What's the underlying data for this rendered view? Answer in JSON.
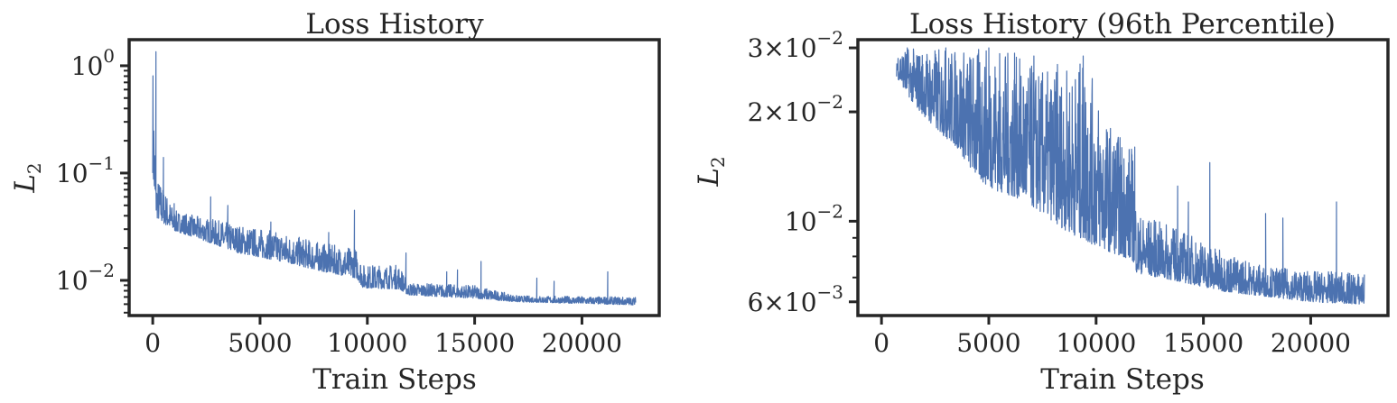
{
  "chart_data": [
    {
      "type": "line",
      "title": "Loss History",
      "xlabel": "Train Steps",
      "ylabel": "L",
      "ylabel_sub": "2",
      "yscale": "log",
      "xlim": [
        -1100,
        23600
      ],
      "ylim": [
        0.0047,
        1.75
      ],
      "x_ticks": [
        0,
        5000,
        10000,
        15000,
        20000
      ],
      "x_tick_labels": [
        "0",
        "5000",
        "10000",
        "15000",
        "20000"
      ],
      "y_ticks": [
        {
          "value": 1,
          "base": "10",
          "exp": "0"
        },
        {
          "value": 0.1,
          "base": "10",
          "exp": "−1"
        },
        {
          "value": 0.01,
          "base": "10",
          "exp": "−2"
        }
      ],
      "grid": false,
      "color": "#4C72B0",
      "envelope": [
        {
          "x": 0,
          "lo": 0.1,
          "hi": 1.35
        },
        {
          "x": 60,
          "lo": 0.06,
          "hi": 0.5
        },
        {
          "x": 120,
          "lo": 0.045,
          "hi": 0.12
        },
        {
          "x": 200,
          "lo": 0.038,
          "hi": 0.09
        },
        {
          "x": 400,
          "lo": 0.035,
          "hi": 0.08
        },
        {
          "x": 1000,
          "lo": 0.029,
          "hi": 0.045
        },
        {
          "x": 2000,
          "lo": 0.025,
          "hi": 0.04
        },
        {
          "x": 4000,
          "lo": 0.018,
          "hi": 0.033
        },
        {
          "x": 6000,
          "lo": 0.015,
          "hi": 0.028
        },
        {
          "x": 8000,
          "lo": 0.012,
          "hi": 0.022
        },
        {
          "x": 9500,
          "lo": 0.0105,
          "hi": 0.02
        },
        {
          "x": 9800,
          "lo": 0.0085,
          "hi": 0.014
        },
        {
          "x": 11500,
          "lo": 0.0083,
          "hi": 0.014
        },
        {
          "x": 11900,
          "lo": 0.0073,
          "hi": 0.0095
        },
        {
          "x": 15000,
          "lo": 0.0068,
          "hi": 0.009
        },
        {
          "x": 17000,
          "lo": 0.0063,
          "hi": 0.0072
        },
        {
          "x": 22500,
          "lo": 0.0059,
          "hi": 0.007
        }
      ],
      "spikes": [
        {
          "x": 150,
          "y": 1.35
        },
        {
          "x": 500,
          "y": 0.14
        },
        {
          "x": 1000,
          "y": 0.052
        },
        {
          "x": 2700,
          "y": 0.06
        },
        {
          "x": 3500,
          "y": 0.05
        },
        {
          "x": 5500,
          "y": 0.035
        },
        {
          "x": 8200,
          "y": 0.028
        },
        {
          "x": 9400,
          "y": 0.045
        },
        {
          "x": 11800,
          "y": 0.018
        },
        {
          "x": 13700,
          "y": 0.012
        },
        {
          "x": 14200,
          "y": 0.0125
        },
        {
          "x": 15300,
          "y": 0.015
        },
        {
          "x": 17900,
          "y": 0.0105
        },
        {
          "x": 18700,
          "y": 0.0098
        },
        {
          "x": 21200,
          "y": 0.012
        }
      ]
    },
    {
      "type": "line",
      "title": "Loss History (96th Percentile)",
      "xlabel": "Train Steps",
      "ylabel": "L",
      "ylabel_sub": "2",
      "yscale": "log",
      "xlim": [
        -1100,
        23600
      ],
      "ylim": [
        0.0055,
        0.0316
      ],
      "x_ticks": [
        0,
        5000,
        10000,
        15000,
        20000
      ],
      "x_tick_labels": [
        "0",
        "5000",
        "10000",
        "15000",
        "20000"
      ],
      "y_ticks": [
        {
          "value": 0.03,
          "mant": "3×",
          "base": "10",
          "exp": "−2"
        },
        {
          "value": 0.02,
          "mant": "2×",
          "base": "10",
          "exp": "−2"
        },
        {
          "value": 0.01,
          "mant": "",
          "base": "10",
          "exp": "−2"
        },
        {
          "value": 0.006,
          "mant": "6×",
          "base": "10",
          "exp": "−3"
        }
      ],
      "grid": false,
      "color": "#4C72B0",
      "envelope": [
        {
          "x": 700,
          "lo": 0.025,
          "hi": 0.03
        },
        {
          "x": 1500,
          "lo": 0.021,
          "hi": 0.03
        },
        {
          "x": 2500,
          "lo": 0.018,
          "hi": 0.03
        },
        {
          "x": 3500,
          "lo": 0.016,
          "hi": 0.03
        },
        {
          "x": 4500,
          "lo": 0.013,
          "hi": 0.03
        },
        {
          "x": 5500,
          "lo": 0.012,
          "hi": 0.03
        },
        {
          "x": 6500,
          "lo": 0.0115,
          "hi": 0.028
        },
        {
          "x": 7500,
          "lo": 0.0105,
          "hi": 0.026
        },
        {
          "x": 8500,
          "lo": 0.0095,
          "hi": 0.026
        },
        {
          "x": 9500,
          "lo": 0.0088,
          "hi": 0.028
        },
        {
          "x": 10500,
          "lo": 0.0083,
          "hi": 0.019
        },
        {
          "x": 11700,
          "lo": 0.0078,
          "hi": 0.016
        },
        {
          "x": 11900,
          "lo": 0.0072,
          "hi": 0.0105
        },
        {
          "x": 14000,
          "lo": 0.0068,
          "hi": 0.0095
        },
        {
          "x": 16000,
          "lo": 0.0064,
          "hi": 0.0082
        },
        {
          "x": 18000,
          "lo": 0.0062,
          "hi": 0.0075
        },
        {
          "x": 20000,
          "lo": 0.006,
          "hi": 0.0073
        },
        {
          "x": 22500,
          "lo": 0.0059,
          "hi": 0.0072
        }
      ],
      "spikes": [
        {
          "x": 1200,
          "y": 0.03
        },
        {
          "x": 3000,
          "y": 0.03
        },
        {
          "x": 5000,
          "y": 0.03
        },
        {
          "x": 6200,
          "y": 0.029
        },
        {
          "x": 7100,
          "y": 0.0285
        },
        {
          "x": 8200,
          "y": 0.027
        },
        {
          "x": 9400,
          "y": 0.0285
        },
        {
          "x": 11800,
          "y": 0.016
        },
        {
          "x": 13800,
          "y": 0.0125
        },
        {
          "x": 14300,
          "y": 0.0113
        },
        {
          "x": 15300,
          "y": 0.0145
        },
        {
          "x": 17900,
          "y": 0.0105
        },
        {
          "x": 18700,
          "y": 0.0102
        },
        {
          "x": 21200,
          "y": 0.0113
        }
      ]
    }
  ]
}
